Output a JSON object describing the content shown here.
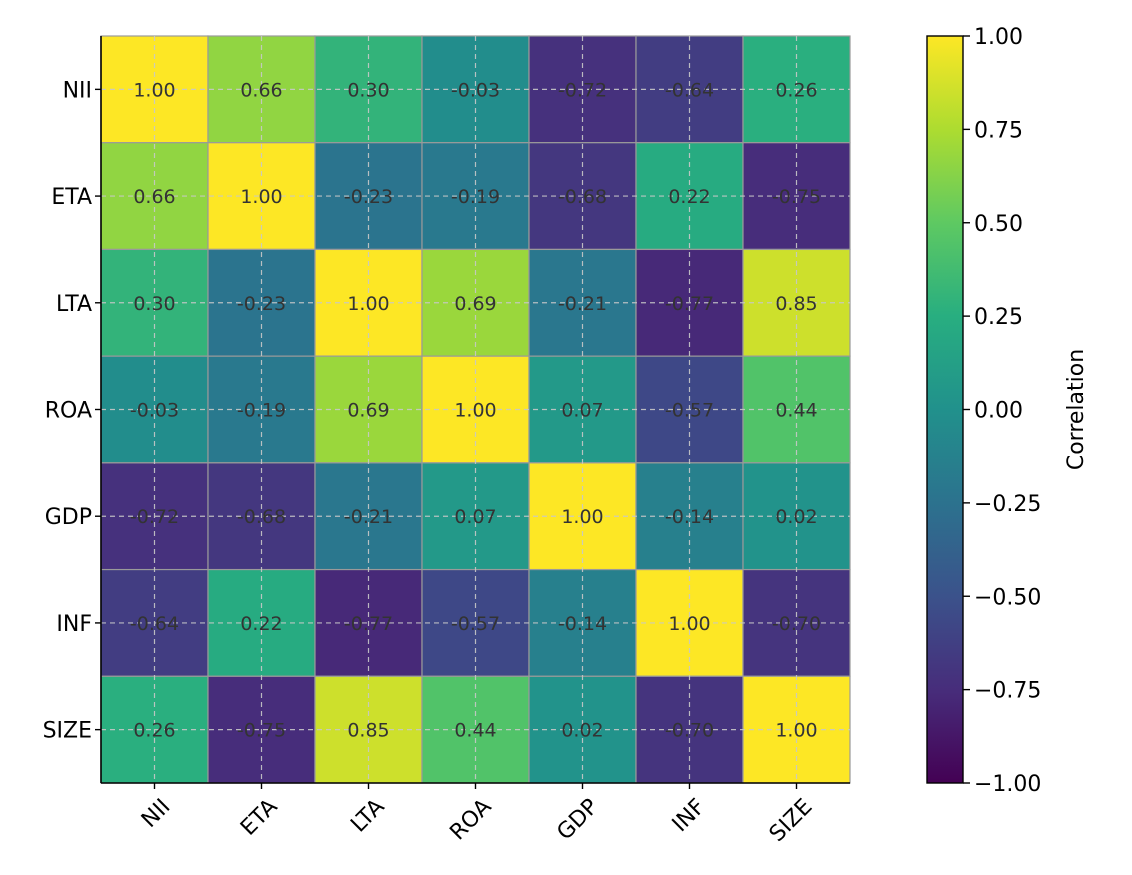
{
  "chart_data": {
    "type": "heatmap",
    "title": "",
    "xlabel": "",
    "ylabel": "",
    "rows": [
      "NII",
      "ETA",
      "LTA",
      "ROA",
      "GDP",
      "INF",
      "SIZE"
    ],
    "columns": [
      "NII",
      "ETA",
      "LTA",
      "ROA",
      "GDP",
      "INF",
      "SIZE"
    ],
    "values": [
      [
        1.0,
        0.66,
        0.3,
        -0.03,
        -0.72,
        -0.64,
        0.26
      ],
      [
        0.66,
        1.0,
        -0.23,
        -0.19,
        -0.68,
        0.22,
        -0.75
      ],
      [
        0.3,
        -0.23,
        1.0,
        0.69,
        -0.21,
        -0.77,
        0.85
      ],
      [
        -0.03,
        -0.19,
        0.69,
        1.0,
        0.07,
        -0.57,
        0.44
      ],
      [
        -0.72,
        -0.68,
        -0.21,
        0.07,
        1.0,
        -0.14,
        0.02
      ],
      [
        -0.64,
        0.22,
        -0.77,
        -0.57,
        -0.14,
        1.0,
        -0.7
      ],
      [
        0.26,
        -0.75,
        0.85,
        0.44,
        0.02,
        -0.7,
        1.0
      ]
    ],
    "value_format": "0.00",
    "grid": true,
    "colormap": "viridis",
    "colorbar": {
      "label": "Correlation",
      "range": [
        -1.0,
        1.0
      ],
      "ticks": [
        1.0,
        0.75,
        0.5,
        0.25,
        0.0,
        -0.25,
        -0.5,
        -0.75,
        -1.0
      ],
      "tick_labels": [
        "1.00",
        "0.75",
        "0.50",
        "0.25",
        "0.00",
        "−0.25",
        "−0.50",
        "−0.75",
        "−1.00"
      ]
    }
  }
}
